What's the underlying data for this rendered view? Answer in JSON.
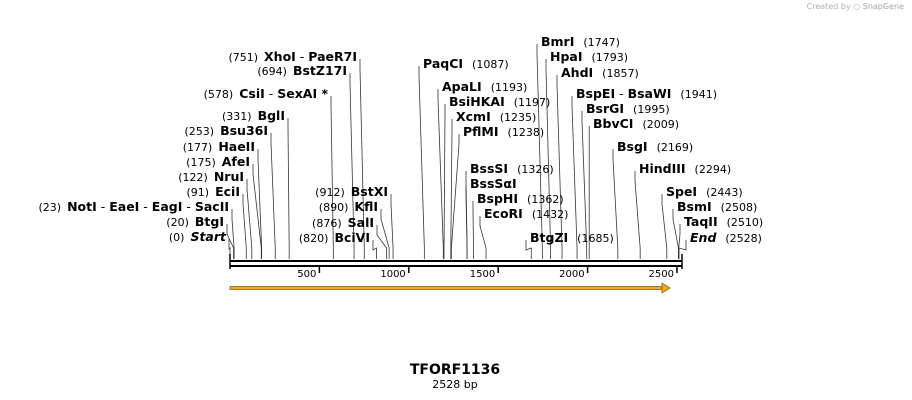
{
  "credit": {
    "prefix": "Created by",
    "brand": "SnapGene"
  },
  "plasmid": {
    "name": "TFORF1136",
    "length_label": "2528 bp",
    "length": 2528
  },
  "axis": {
    "ticks": [
      500,
      1000,
      1500,
      2000,
      2500
    ]
  },
  "feature": {
    "name": "orf-arrow",
    "start": 1,
    "end": 2528,
    "color": "#f5a623"
  },
  "sites_left": [
    {
      "pos": 0,
      "pos_label": "(0)",
      "parts": [
        {
          "t": "Start",
          "italic": true
        }
      ]
    },
    {
      "pos": 20,
      "pos_label": "(20)",
      "parts": [
        {
          "t": "BtgI"
        }
      ]
    },
    {
      "pos": 23,
      "pos_label": "(23)",
      "parts": [
        {
          "t": "NotI"
        },
        {
          "t": " - ",
          "sep": true
        },
        {
          "t": "EaeI"
        },
        {
          "t": " - ",
          "sep": true
        },
        {
          "t": "EagI"
        },
        {
          "t": " - ",
          "sep": true
        },
        {
          "t": "SacII"
        }
      ]
    },
    {
      "pos": 91,
      "pos_label": "(91)",
      "parts": [
        {
          "t": "EciI"
        }
      ]
    },
    {
      "pos": 122,
      "pos_label": "(122)",
      "parts": [
        {
          "t": "NruI"
        }
      ]
    },
    {
      "pos": 175,
      "pos_label": "(175)",
      "parts": [
        {
          "t": "AfeI"
        }
      ]
    },
    {
      "pos": 177,
      "pos_label": "(177)",
      "parts": [
        {
          "t": "HaeII"
        }
      ]
    },
    {
      "pos": 253,
      "pos_label": "(253)",
      "parts": [
        {
          "t": "Bsu36I"
        }
      ]
    },
    {
      "pos": 331,
      "pos_label": "(331)",
      "parts": [
        {
          "t": "BglI"
        }
      ]
    },
    {
      "pos": 578,
      "pos_label": "(578)",
      "parts": [
        {
          "t": "CsiI"
        },
        {
          "t": " - ",
          "sep": true
        },
        {
          "t": "SexAI *"
        }
      ]
    },
    {
      "pos": 694,
      "pos_label": "(694)",
      "parts": [
        {
          "t": "BstZ17I"
        }
      ]
    },
    {
      "pos": 751,
      "pos_label": "(751)",
      "parts": [
        {
          "t": "XhoI"
        },
        {
          "t": " - ",
          "sep": true
        },
        {
          "t": "PaeR7I"
        }
      ]
    },
    {
      "pos": 820,
      "pos_label": "(820)",
      "parts": [
        {
          "t": "BciVI"
        }
      ]
    },
    {
      "pos": 876,
      "pos_label": "(876)",
      "parts": [
        {
          "t": "SalI"
        }
      ]
    },
    {
      "pos": 890,
      "pos_label": "(890)",
      "parts": [
        {
          "t": "KflI"
        }
      ]
    },
    {
      "pos": 912,
      "pos_label": "(912)",
      "parts": [
        {
          "t": "BstXI"
        }
      ]
    }
  ],
  "sites_right": [
    {
      "pos": 1087,
      "pos_label": "(1087)",
      "parts": [
        {
          "t": "PaqCI"
        }
      ]
    },
    {
      "pos": 1193,
      "pos_label": "(1193)",
      "parts": [
        {
          "t": "ApaLI"
        }
      ]
    },
    {
      "pos": 1197,
      "pos_label": "(1197)",
      "parts": [
        {
          "t": "BsiHKAI"
        }
      ]
    },
    {
      "pos": 1235,
      "pos_label": "(1235)",
      "parts": [
        {
          "t": "XcmI"
        }
      ]
    },
    {
      "pos": 1238,
      "pos_label": "(1238)",
      "parts": [
        {
          "t": "PflMI"
        }
      ]
    },
    {
      "pos": 1326,
      "pos_label": "(1326)",
      "parts": [
        {
          "t": "BssSI"
        }
      ]
    },
    {
      "pos": 1326,
      "pos_label": "",
      "parts": [
        {
          "t": "BssSαI"
        }
      ]
    },
    {
      "pos": 1362,
      "pos_label": "(1362)",
      "parts": [
        {
          "t": "BspHI"
        }
      ]
    },
    {
      "pos": 1432,
      "pos_label": "(1432)",
      "parts": [
        {
          "t": "EcoRI"
        }
      ]
    },
    {
      "pos": 1685,
      "pos_label": "(1685)",
      "parts": [
        {
          "t": "BtgZI"
        }
      ]
    },
    {
      "pos": 1747,
      "pos_label": "(1747)",
      "parts": [
        {
          "t": "BmrI"
        }
      ]
    },
    {
      "pos": 1793,
      "pos_label": "(1793)",
      "parts": [
        {
          "t": "HpaI"
        }
      ]
    },
    {
      "pos": 1857,
      "pos_label": "(1857)",
      "parts": [
        {
          "t": "AhdI"
        }
      ]
    },
    {
      "pos": 1941,
      "pos_label": "(1941)",
      "parts": [
        {
          "t": "BspEI"
        },
        {
          "t": " - ",
          "sep": true
        },
        {
          "t": "BsaWI"
        }
      ]
    },
    {
      "pos": 1995,
      "pos_label": "(1995)",
      "parts": [
        {
          "t": "BsrGI"
        }
      ]
    },
    {
      "pos": 2009,
      "pos_label": "(2009)",
      "parts": [
        {
          "t": "BbvCI"
        }
      ]
    },
    {
      "pos": 2169,
      "pos_label": "(2169)",
      "parts": [
        {
          "t": "BsgI"
        }
      ]
    },
    {
      "pos": 2294,
      "pos_label": "(2294)",
      "parts": [
        {
          "t": "HindIII"
        }
      ]
    },
    {
      "pos": 2443,
      "pos_label": "(2443)",
      "parts": [
        {
          "t": "SpeI"
        }
      ]
    },
    {
      "pos": 2508,
      "pos_label": "(2508)",
      "parts": [
        {
          "t": "BsmI"
        }
      ]
    },
    {
      "pos": 2510,
      "pos_label": "(2510)",
      "parts": [
        {
          "t": "TaqII"
        }
      ]
    },
    {
      "pos": 2528,
      "pos_label": "(2528)",
      "parts": [
        {
          "t": "End",
          "italic": true
        }
      ]
    }
  ]
}
